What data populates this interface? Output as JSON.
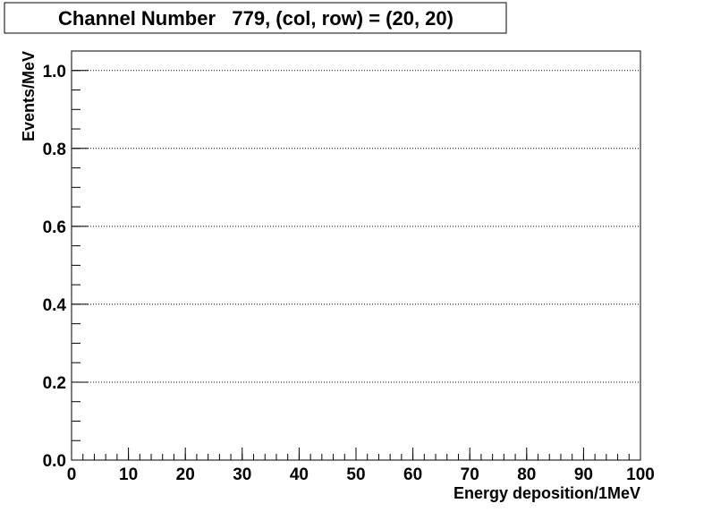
{
  "chart_data": {
    "type": "bar",
    "title": "Channel Number   779, (col, row) = (20, 20)",
    "xlabel": "Energy deposition/1MeV",
    "ylabel": "Events/MeV",
    "xlim": [
      0,
      100
    ],
    "ylim": [
      0,
      1.05
    ],
    "x_ticks": [
      "0",
      "10",
      "20",
      "30",
      "40",
      "50",
      "60",
      "70",
      "80",
      "90",
      "100"
    ],
    "y_ticks": [
      "0.0",
      "0.2",
      "0.4",
      "0.6",
      "0.8",
      "1.0"
    ],
    "x_tick_values": [
      0,
      10,
      20,
      30,
      40,
      50,
      60,
      70,
      80,
      90,
      100
    ],
    "y_tick_values": [
      0,
      0.2,
      0.4,
      0.6,
      0.8,
      1.0
    ],
    "x_minor_step": 2,
    "y_minor_step": 0.05,
    "grid": "horizontal dotted at major y ticks",
    "series": [],
    "values": []
  }
}
